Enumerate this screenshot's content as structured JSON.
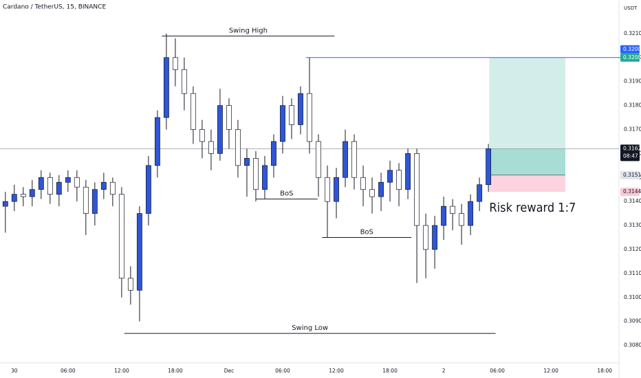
{
  "chart_data": {
    "type": "candlestick",
    "title": "Cardano / TetherUS, 15, BINANCE",
    "y_axis_label": "USDT",
    "up_color": "#2f56d6",
    "down_color": "#ffffff",
    "xlim": [
      -1.6,
      67.6
    ],
    "ylim": [
      0.3075,
      0.3224
    ],
    "xticks": [
      {
        "value": 0,
        "label": "30"
      },
      {
        "value": 6,
        "label": "06:00"
      },
      {
        "value": 12,
        "label": "12:00"
      },
      {
        "value": 18,
        "label": "18:00"
      },
      {
        "value": 24,
        "label": "Dec"
      },
      {
        "value": 30,
        "label": "06:00"
      },
      {
        "value": 36,
        "label": "12:00"
      },
      {
        "value": 42,
        "label": "18:00"
      },
      {
        "value": 48,
        "label": "2"
      },
      {
        "value": 54,
        "label": "06:00"
      },
      {
        "value": 60,
        "label": "12:00"
      },
      {
        "value": 66,
        "label": "18:00"
      }
    ],
    "yticks": [
      {
        "value": 0.308,
        "label": "0.3080"
      },
      {
        "value": 0.309,
        "label": "0.3090"
      },
      {
        "value": 0.31,
        "label": "0.3100"
      },
      {
        "value": 0.311,
        "label": "0.3110"
      },
      {
        "value": 0.312,
        "label": "0.3120"
      },
      {
        "value": 0.313,
        "label": "0.3130"
      },
      {
        "value": 0.314,
        "label": "0.3140"
      },
      {
        "value": 0.315,
        "label": "0.3150"
      },
      {
        "value": 0.316,
        "label": "0.3160"
      },
      {
        "value": 0.317,
        "label": "0.3170"
      },
      {
        "value": 0.318,
        "label": "0.3180"
      },
      {
        "value": 0.319,
        "label": "0.3190"
      },
      {
        "value": 0.32,
        "label": "0.3200"
      },
      {
        "value": 0.321,
        "label": "0.3210"
      }
    ],
    "candles": {
      "x": [
        -1,
        0,
        1,
        2,
        3,
        4,
        5,
        6,
        7,
        8,
        9,
        10,
        11,
        12,
        13,
        14,
        15,
        16,
        17,
        18,
        19,
        20,
        21,
        22,
        23,
        24,
        25,
        26,
        27,
        28,
        29,
        30,
        31,
        32,
        33,
        34,
        35,
        36,
        37,
        38,
        39,
        40,
        41,
        42,
        43,
        44,
        45,
        46,
        47,
        48,
        49,
        50,
        51,
        52,
        53
      ],
      "open": [
        0.3138,
        0.314,
        0.3143,
        0.3142,
        0.3145,
        0.315,
        0.3143,
        0.3148,
        0.315,
        0.3146,
        0.3135,
        0.3145,
        0.3148,
        0.3143,
        0.3108,
        0.3103,
        0.3135,
        0.3155,
        0.3175,
        0.32,
        0.3195,
        0.3185,
        0.317,
        0.3165,
        0.316,
        0.318,
        0.317,
        0.3155,
        0.3158,
        0.3145,
        0.3155,
        0.3165,
        0.318,
        0.3172,
        0.3185,
        0.3165,
        0.315,
        0.314,
        0.315,
        0.3165,
        0.315,
        0.3145,
        0.3142,
        0.3148,
        0.3153,
        0.3145,
        0.316,
        0.313,
        0.312,
        0.313,
        0.3138,
        0.3135,
        0.313,
        0.314,
        0.3147
      ],
      "high": [
        0.3144,
        0.3147,
        0.3146,
        0.3149,
        0.3153,
        0.3152,
        0.3151,
        0.3153,
        0.3153,
        0.3149,
        0.3148,
        0.3152,
        0.315,
        0.3146,
        0.3113,
        0.3138,
        0.3159,
        0.3178,
        0.321,
        0.3208,
        0.32,
        0.3188,
        0.3174,
        0.317,
        0.3187,
        0.3183,
        0.3174,
        0.3162,
        0.3161,
        0.3159,
        0.3168,
        0.3184,
        0.3183,
        0.3188,
        0.32,
        0.3168,
        0.3155,
        0.3154,
        0.317,
        0.3168,
        0.3155,
        0.315,
        0.3152,
        0.3157,
        0.3156,
        0.3162,
        0.3162,
        0.3135,
        0.3134,
        0.3142,
        0.3141,
        0.3139,
        0.3143,
        0.315,
        0.3164
      ],
      "low": [
        0.3127,
        0.3136,
        0.3138,
        0.3138,
        0.3141,
        0.3139,
        0.3138,
        0.3144,
        0.314,
        0.3126,
        0.313,
        0.3141,
        0.3138,
        0.31,
        0.3097,
        0.309,
        0.313,
        0.315,
        0.317,
        0.3188,
        0.3178,
        0.3164,
        0.3158,
        0.3153,
        0.3157,
        0.3162,
        0.315,
        0.3142,
        0.314,
        0.3141,
        0.315,
        0.316,
        0.3166,
        0.3168,
        0.316,
        0.3142,
        0.3125,
        0.3133,
        0.3146,
        0.3145,
        0.3138,
        0.3135,
        0.3136,
        0.314,
        0.3138,
        0.3141,
        0.3106,
        0.3108,
        0.3112,
        0.3124,
        0.3128,
        0.3122,
        0.3126,
        0.3136,
        0.3144
      ],
      "close": [
        0.314,
        0.3143,
        0.3142,
        0.3145,
        0.315,
        0.3143,
        0.3148,
        0.315,
        0.3146,
        0.3135,
        0.3145,
        0.3148,
        0.3143,
        0.3108,
        0.3103,
        0.3135,
        0.3155,
        0.3175,
        0.32,
        0.3195,
        0.3185,
        0.317,
        0.3165,
        0.316,
        0.318,
        0.317,
        0.3155,
        0.3158,
        0.3145,
        0.3155,
        0.3165,
        0.318,
        0.3172,
        0.3185,
        0.3165,
        0.315,
        0.314,
        0.315,
        0.3165,
        0.315,
        0.3145,
        0.3142,
        0.3148,
        0.3153,
        0.3145,
        0.316,
        0.313,
        0.312,
        0.313,
        0.3138,
        0.3135,
        0.313,
        0.314,
        0.3147,
        0.3162
      ]
    },
    "annotations": [
      {
        "label": "Swing High",
        "price": 0.3209,
        "x": [
          16.5,
          35.8
        ]
      },
      {
        "label": "BoS",
        "price": 0.3141,
        "x": [
          27,
          33.9
        ]
      },
      {
        "label": "BoS",
        "price": 0.3125,
        "x": [
          34.4,
          44.4
        ]
      },
      {
        "label": "Swing Low",
        "price": 0.3085,
        "x": [
          12.3,
          53.8
        ]
      }
    ],
    "position": {
      "label": "Risk reward 1:7",
      "entry": 0.3151,
      "stop": 0.3144,
      "target": 0.32,
      "x": [
        53.1,
        61.6
      ]
    },
    "target_line": {
      "price": 0.32,
      "x_start": 32.6,
      "color": "#2962ff"
    },
    "last_price": {
      "price": 0.3162,
      "label": "0.3162",
      "countdown": "08:47"
    },
    "price_tags": [
      {
        "value": 0.32,
        "label": "0.3200",
        "color": "#2962ff"
      },
      {
        "value": 0.32,
        "label": "0.3200",
        "color": "#22ab94"
      },
      {
        "value": 0.3151,
        "label": "0.3151",
        "color": "#e0e3eb"
      },
      {
        "value": 0.3144,
        "label": "0.3144",
        "color": "#f7c9d4"
      }
    ]
  }
}
